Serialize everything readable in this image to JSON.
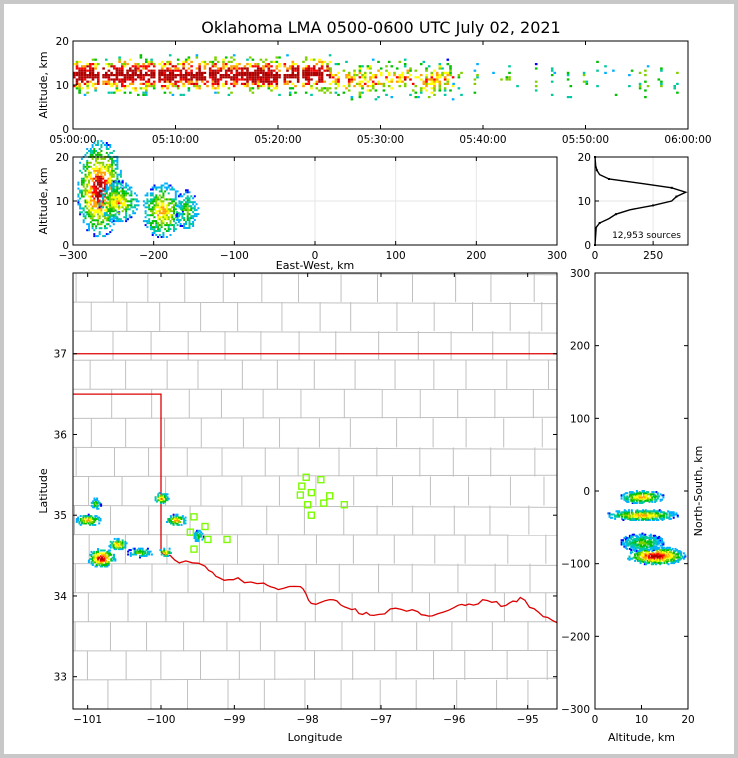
{
  "title": "Oklahoma LMA 0500-0600 UTC July 02, 2021",
  "colors": {
    "boundary": "#dd0000",
    "county": "#c0c0c0",
    "station": "#7cfc00",
    "frame": "#c8c8c8"
  },
  "chart_data": [
    {
      "id": "time-altitude",
      "type": "heatmap",
      "ylabel": "Altitude, km",
      "xlabel": "",
      "ylim": [
        0,
        20
      ],
      "yticks": [
        "0",
        "10",
        "20"
      ],
      "xticks": [
        "05:00:00",
        "05:10:00",
        "05:20:00",
        "05:30:00",
        "05:40:00",
        "05:50:00",
        "06:00:00"
      ],
      "xlim_minutes": [
        0,
        60
      ],
      "bands": [
        {
          "from_min": 0,
          "to_min": 25,
          "alt_low": 7,
          "alt_high": 17,
          "density": "high"
        },
        {
          "from_min": 25,
          "to_min": 37,
          "alt_low": 6,
          "alt_high": 16,
          "density": "medium"
        },
        {
          "from_min": 37,
          "to_min": 60,
          "alt_low": 6,
          "alt_high": 16,
          "density": "low"
        }
      ]
    },
    {
      "id": "ew-altitude",
      "type": "heatmap",
      "ylabel": "Altitude, km",
      "xlabel": "East-West, km",
      "xlim": [
        -300,
        300
      ],
      "ylim": [
        0,
        20
      ],
      "xticks": [
        "−300",
        "−200",
        "−100",
        "0",
        "100",
        "200",
        "300"
      ],
      "yticks": [
        "0",
        "10",
        "20"
      ],
      "clusters": [
        {
          "x": -268,
          "alt": 13,
          "rx": 18,
          "ry": 7,
          "peak": "high"
        },
        {
          "x": -245,
          "alt": 10,
          "rx": 16,
          "ry": 3,
          "peak": "medium"
        },
        {
          "x": -190,
          "alt": 8,
          "rx": 16,
          "ry": 4,
          "peak": "medium"
        },
        {
          "x": -160,
          "alt": 8,
          "rx": 9,
          "ry": 3,
          "peak": "low"
        }
      ]
    },
    {
      "id": "altitude-histogram",
      "type": "line",
      "xlim": [
        0,
        400
      ],
      "ylim": [
        0,
        20
      ],
      "xticks": [
        "0",
        "250"
      ],
      "yticks": [
        "0",
        "10",
        "20"
      ],
      "annotation": "12,953 sources",
      "x": [
        0,
        5,
        20,
        60,
        90,
        150,
        250,
        330,
        350,
        390,
        330,
        200,
        60,
        20,
        8,
        3,
        0
      ],
      "y": [
        0,
        4,
        5,
        6,
        7,
        8,
        9,
        10,
        11,
        12,
        13,
        14,
        15,
        16,
        17,
        18,
        20
      ]
    },
    {
      "id": "plan-view",
      "type": "scatter",
      "xlabel": "Longitude",
      "ylabel": "Latitude",
      "xlim": [
        -101.2,
        -94.6
      ],
      "ylim": [
        32.6,
        38
      ],
      "xticks": [
        "−101",
        "−100",
        "−99",
        "−98",
        "−97",
        "−96",
        "−95"
      ],
      "yticks": [
        "33",
        "34",
        "35",
        "36",
        "37"
      ],
      "clusters": [
        {
          "lon": -100.82,
          "lat": 34.48,
          "rx": 0.13,
          "ry": 0.08,
          "peak": "high"
        },
        {
          "lon": -100.6,
          "lat": 34.65,
          "rx": 0.09,
          "ry": 0.05,
          "peak": "medium"
        },
        {
          "lon": -101.0,
          "lat": 34.95,
          "rx": 0.12,
          "ry": 0.05,
          "peak": "medium"
        },
        {
          "lon": -100.9,
          "lat": 35.15,
          "rx": 0.05,
          "ry": 0.05,
          "peak": "low"
        },
        {
          "lon": -100.0,
          "lat": 35.22,
          "rx": 0.07,
          "ry": 0.05,
          "peak": "medium"
        },
        {
          "lon": -100.3,
          "lat": 34.55,
          "rx": 0.12,
          "ry": 0.04,
          "peak": "low"
        },
        {
          "lon": -99.95,
          "lat": 34.55,
          "rx": 0.06,
          "ry": 0.04,
          "peak": "medium"
        },
        {
          "lon": -99.8,
          "lat": 34.95,
          "rx": 0.1,
          "ry": 0.05,
          "peak": "medium"
        },
        {
          "lon": -99.5,
          "lat": 34.75,
          "rx": 0.05,
          "ry": 0.05,
          "peak": "low"
        }
      ],
      "stations": [
        [
          -99.55,
          34.98
        ],
        [
          -99.4,
          34.86
        ],
        [
          -99.6,
          34.79
        ],
        [
          -99.36,
          34.7
        ],
        [
          -99.1,
          34.7
        ],
        [
          -99.55,
          34.58
        ],
        [
          -98.02,
          35.47
        ],
        [
          -97.82,
          35.44
        ],
        [
          -98.08,
          35.36
        ],
        [
          -97.95,
          35.28
        ],
        [
          -98.1,
          35.25
        ],
        [
          -97.7,
          35.24
        ],
        [
          -97.78,
          35.15
        ],
        [
          -97.5,
          35.13
        ],
        [
          -98.0,
          35.13
        ],
        [
          -97.95,
          35.0
        ]
      ]
    },
    {
      "id": "altitude-ns",
      "type": "heatmap",
      "xlabel": "Altitude, km",
      "ylabel": "North-South, km",
      "xlim": [
        0,
        20
      ],
      "ylim": [
        -300,
        300
      ],
      "xticks": [
        "0",
        "10",
        "20"
      ],
      "yticks": [
        "−300",
        "−200",
        "−100",
        "0",
        "100",
        "200",
        "300"
      ],
      "clusters": [
        {
          "alt": 10,
          "ns": -7,
          "rx": 3,
          "ry": 6,
          "peak": "medium"
        },
        {
          "alt": 10,
          "ns": -32,
          "rx": 5,
          "ry": 5,
          "peak": "medium"
        },
        {
          "alt": 13,
          "ns": -88,
          "rx": 4,
          "ry": 8,
          "peak": "high"
        },
        {
          "alt": 10,
          "ns": -70,
          "rx": 3,
          "ry": 8,
          "peak": "low"
        }
      ]
    }
  ]
}
